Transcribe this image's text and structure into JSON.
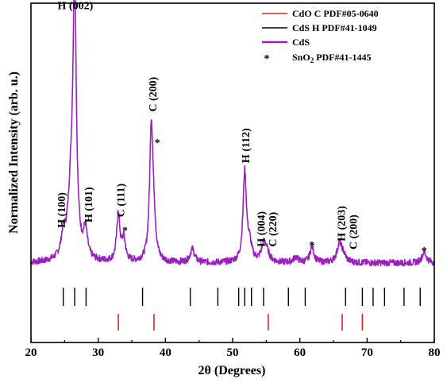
{
  "chart_data": {
    "type": "line",
    "xlabel": "2θ (Degrees)",
    "ylabel": "Normalized Intensity (arb. u.)",
    "xlim": [
      20,
      80
    ],
    "xticks": [
      20,
      30,
      40,
      50,
      60,
      70,
      80
    ],
    "ylim": [
      0,
      1
    ],
    "grid": false,
    "legend_position": "top-right",
    "legend": [
      {
        "label": "CdO C PDF#05-0640",
        "kind": "line",
        "color": "#e02020"
      },
      {
        "label": "CdS H PDF#41-1049",
        "kind": "line",
        "color": "#000000"
      },
      {
        "label": "CdS",
        "kind": "line",
        "color": "#9b1fbf"
      },
      {
        "label_main": "SnO",
        "label_sub": "2",
        "label_rest": " PDF#41-1445",
        "kind": "marker",
        "marker": "*",
        "color": "#000000"
      }
    ],
    "series": [
      {
        "name": "CdS",
        "color": "#9b1fbf",
        "baseline": 0.05,
        "noise_amplitude": 0.012,
        "peaks": [
          {
            "x": 24.8,
            "height": 0.07,
            "width": 0.35
          },
          {
            "x": 26.5,
            "height": 0.95,
            "width": 0.28
          },
          {
            "x": 26.0,
            "height": 0.25,
            "width": 0.6
          },
          {
            "x": 28.1,
            "height": 0.1,
            "width": 0.35
          },
          {
            "x": 33.0,
            "height": 0.17,
            "width": 0.3
          },
          {
            "x": 33.8,
            "height": 0.08,
            "width": 0.3
          },
          {
            "x": 37.9,
            "height": 0.5,
            "width": 0.3
          },
          {
            "x": 38.3,
            "height": 0.1,
            "width": 0.3
          },
          {
            "x": 44.0,
            "height": 0.05,
            "width": 0.4
          },
          {
            "x": 51.8,
            "height": 0.33,
            "width": 0.3
          },
          {
            "x": 52.5,
            "height": 0.06,
            "width": 0.4
          },
          {
            "x": 54.6,
            "height": 0.05,
            "width": 0.4
          },
          {
            "x": 55.0,
            "height": 0.04,
            "width": 0.5
          },
          {
            "x": 59.4,
            "height": 0.02,
            "width": 0.4
          },
          {
            "x": 61.8,
            "height": 0.06,
            "width": 0.35
          },
          {
            "x": 65.9,
            "height": 0.07,
            "width": 0.45
          },
          {
            "x": 66.5,
            "height": 0.02,
            "width": 0.4
          },
          {
            "x": 78.5,
            "height": 0.04,
            "width": 0.4
          }
        ]
      }
    ],
    "reference_cds_h": [
      24.8,
      26.5,
      28.2,
      36.6,
      43.7,
      47.8,
      50.9,
      51.8,
      52.8,
      54.6,
      58.3,
      60.8,
      66.8,
      69.3,
      70.9,
      72.6,
      75.5,
      77.9
    ],
    "reference_cdo_c": [
      33.0,
      38.3,
      55.3,
      66.3,
      69.3
    ],
    "peak_labels": [
      {
        "text": "H (002)",
        "x": 26.6,
        "y": 0.99,
        "rotated": false
      },
      {
        "text": "H (100)",
        "x": 24.5,
        "y": 0.18,
        "rotated": true
      },
      {
        "text": "H (101)",
        "x": 28.5,
        "y": 0.2,
        "rotated": true
      },
      {
        "text": "C (111)",
        "x": 33.3,
        "y": 0.22,
        "rotated": true
      },
      {
        "text": "C (200)",
        "x": 38.1,
        "y": 0.61,
        "rotated": true
      },
      {
        "text": "H (112)",
        "x": 51.9,
        "y": 0.42,
        "rotated": true
      },
      {
        "text": "H (004)",
        "x": 54.2,
        "y": 0.11,
        "rotated": true
      },
      {
        "text": "C (220)",
        "x": 55.9,
        "y": 0.11,
        "rotated": true
      },
      {
        "text": "H (203)",
        "x": 66.1,
        "y": 0.13,
        "rotated": true
      },
      {
        "text": "C (200)",
        "x": 67.9,
        "y": 0.1,
        "rotated": true
      }
    ],
    "stars": [
      {
        "x": 34.0,
        "y": 0.175
      },
      {
        "x": 38.8,
        "y": 0.5
      },
      {
        "x": 61.8,
        "y": 0.12
      },
      {
        "x": 78.5,
        "y": 0.1
      }
    ]
  }
}
